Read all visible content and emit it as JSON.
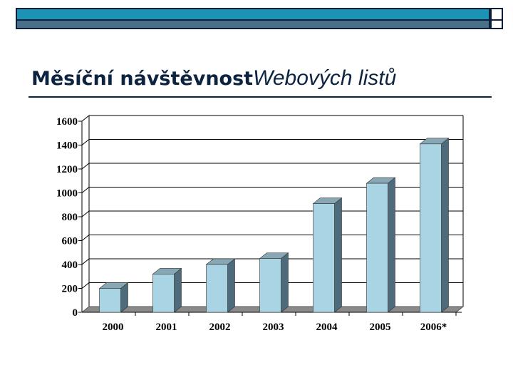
{
  "slide": {
    "title_part1": "Měsíční návštěvnost",
    "title_part2": "Webových listů"
  },
  "colors": {
    "bar_front": "#a9d4e4",
    "bar_side": "#4d6b7a",
    "bar_top": "#87a7b5",
    "floor": "#8a8a8a",
    "accent_bar": "#1a93b4",
    "title": "#0d2440"
  },
  "chart_data": {
    "type": "bar",
    "style": "3d",
    "categories": [
      "2000",
      "2001",
      "2002",
      "2003",
      "2004",
      "2005",
      "2006*"
    ],
    "values": [
      200,
      320,
      400,
      450,
      910,
      1080,
      1410
    ],
    "title": "",
    "xlabel": "",
    "ylabel": "",
    "ylim": [
      0,
      1600
    ],
    "yticks": [
      "0",
      "200",
      "400",
      "600",
      "800",
      "1000",
      "1200",
      "1400",
      "1600"
    ],
    "grid": true,
    "legend": "none"
  }
}
